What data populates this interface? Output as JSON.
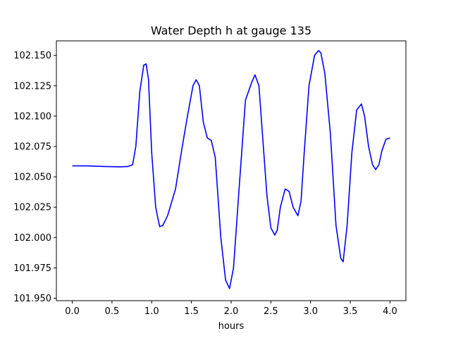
{
  "chart_data": {
    "type": "line",
    "title": "Water Depth h at gauge 135",
    "xlabel": "hours",
    "ylabel": "",
    "xlim": [
      -0.2,
      4.2
    ],
    "ylim": [
      101.948,
      102.162
    ],
    "grid": false,
    "legend": "none",
    "line_color": "#0000ff",
    "x_ticks": [
      {
        "value": 0.0,
        "label": "0.0"
      },
      {
        "value": 0.5,
        "label": "0.5"
      },
      {
        "value": 1.0,
        "label": "1.0"
      },
      {
        "value": 1.5,
        "label": "1.5"
      },
      {
        "value": 2.0,
        "label": "2.0"
      },
      {
        "value": 2.5,
        "label": "2.5"
      },
      {
        "value": 3.0,
        "label": "3.0"
      },
      {
        "value": 3.5,
        "label": "3.5"
      },
      {
        "value": 4.0,
        "label": "4.0"
      }
    ],
    "y_ticks": [
      {
        "value": 101.95,
        "label": "101.950"
      },
      {
        "value": 101.975,
        "label": "101.975"
      },
      {
        "value": 102.0,
        "label": "102.000"
      },
      {
        "value": 102.025,
        "label": "102.025"
      },
      {
        "value": 102.05,
        "label": "102.050"
      },
      {
        "value": 102.075,
        "label": "102.075"
      },
      {
        "value": 102.1,
        "label": "102.100"
      },
      {
        "value": 102.125,
        "label": "102.125"
      },
      {
        "value": 102.15,
        "label": "102.150"
      }
    ],
    "series": [
      {
        "x": [
          0.0,
          0.2,
          0.4,
          0.6,
          0.7,
          0.76,
          0.8,
          0.85,
          0.9,
          0.93,
          0.96,
          1.0,
          1.05,
          1.1,
          1.14,
          1.2,
          1.3,
          1.38,
          1.45,
          1.52,
          1.56,
          1.6,
          1.65,
          1.7,
          1.75,
          1.8,
          1.87,
          1.93,
          1.98,
          2.03,
          2.1,
          2.18,
          2.26,
          2.3,
          2.35,
          2.4,
          2.45,
          2.5,
          2.55,
          2.58,
          2.62,
          2.68,
          2.73,
          2.78,
          2.84,
          2.88,
          2.92,
          2.98,
          3.05,
          3.1,
          3.13,
          3.18,
          3.25,
          3.32,
          3.38,
          3.41,
          3.46,
          3.52,
          3.58,
          3.64,
          3.68,
          3.73,
          3.78,
          3.82,
          3.86,
          3.9,
          3.95,
          4.0
        ],
        "y": [
          102.059,
          102.059,
          102.0585,
          102.0582,
          102.0585,
          102.06,
          102.075,
          102.12,
          102.142,
          102.143,
          102.13,
          102.07,
          102.025,
          102.009,
          102.01,
          102.018,
          102.04,
          102.073,
          102.1,
          102.125,
          102.13,
          102.125,
          102.095,
          102.082,
          102.08,
          102.066,
          102.0,
          101.965,
          101.958,
          101.975,
          102.04,
          102.113,
          102.128,
          102.134,
          102.125,
          102.08,
          102.035,
          102.008,
          102.002,
          102.006,
          102.025,
          102.04,
          102.038,
          102.025,
          102.018,
          102.03,
          102.07,
          102.125,
          102.15,
          102.154,
          102.152,
          102.135,
          102.085,
          102.01,
          101.983,
          101.98,
          102.01,
          102.07,
          102.105,
          102.11,
          102.1,
          102.075,
          102.06,
          102.056,
          102.06,
          102.072,
          102.081,
          102.082
        ]
      }
    ]
  }
}
